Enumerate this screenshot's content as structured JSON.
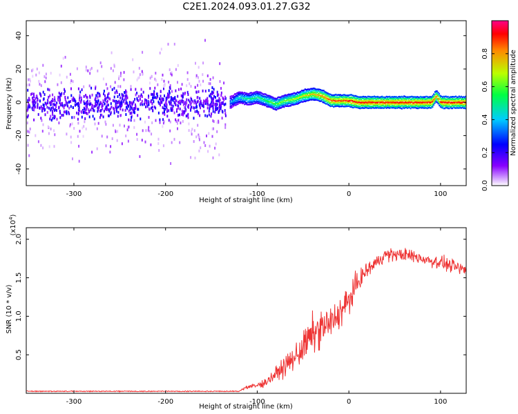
{
  "figure": {
    "title": "C2E1.2024.093.01.27.G32"
  },
  "colors": {
    "snr_line": "#ee3333",
    "frame": "#000000"
  },
  "chart_data": [
    {
      "type": "heatmap",
      "title": "C2E1.2024.093.01.27.G32",
      "xlabel": "Height of straight line (km)",
      "ylabel": "Frequency (Hz)",
      "xlim": [
        -352,
        128
      ],
      "ylim": [
        -50,
        49
      ],
      "x_ticks": [
        -300,
        -200,
        -100,
        0,
        100
      ],
      "y_ticks": [
        -40,
        -20,
        0,
        20,
        40
      ],
      "grid": false,
      "colorbar": {
        "label": "Normalized spectral amplitude",
        "range": [
          0,
          1
        ],
        "ticks": [
          "0.0",
          "0.2",
          "0.4",
          "0.6",
          "0.8"
        ],
        "tick_values": [
          0,
          0.2,
          0.4,
          0.6,
          0.8
        ]
      },
      "signal_track": {
        "x": [
          -130,
          -120,
          -110,
          -100,
          -90,
          -80,
          -70,
          -60,
          -50,
          -40,
          -30,
          -20,
          -10,
          0,
          10,
          20,
          30,
          40,
          50,
          60,
          70,
          80,
          90,
          95,
          100,
          110,
          120,
          128
        ],
        "frequency": [
          0,
          3,
          2,
          3,
          1,
          -1,
          1,
          2,
          4,
          5,
          4,
          1,
          1,
          1,
          0,
          0,
          0,
          0,
          0,
          0,
          0,
          0,
          0,
          4,
          0,
          0,
          0,
          0
        ],
        "amplitude": [
          0.35,
          0.45,
          0.5,
          0.5,
          0.55,
          0.6,
          0.6,
          0.65,
          0.7,
          0.75,
          0.8,
          0.85,
          0.85,
          0.9,
          0.9,
          0.9,
          0.9,
          0.9,
          0.9,
          0.9,
          0.9,
          0.9,
          0.9,
          0.8,
          0.9,
          0.9,
          0.9,
          0.9
        ]
      },
      "noise_region": {
        "x_from": -352,
        "x_to": -135,
        "amplitude": 0.1
      }
    },
    {
      "type": "line",
      "title": "",
      "xlabel": "Height of straight line (km)",
      "ylabel": "SNR (10 * v/v)",
      "y_multiplier": "(x10",
      "y_multiplier_exp": "4",
      "y_multiplier_close": ")",
      "xlim": [
        -352,
        128
      ],
      "ylim": [
        0,
        2.15
      ],
      "x_ticks": [
        -300,
        -200,
        -100,
        0,
        100
      ],
      "y_ticks": [
        0.5,
        1.0,
        1.5,
        2.0
      ],
      "y_tick_labels": [
        "0.5",
        "1.0",
        "1.5",
        "2.0"
      ],
      "grid": false,
      "series": [
        {
          "color": "#ee3333",
          "x": [
            -352,
            -300,
            -250,
            -200,
            -150,
            -120,
            -112,
            -100,
            -90,
            -80,
            -70,
            -60,
            -50,
            -40,
            -30,
            -20,
            -10,
            0,
            10,
            20,
            30,
            40,
            50,
            60,
            70,
            80,
            90,
            100,
            110,
            120,
            128
          ],
          "values": [
            0.02,
            0.02,
            0.02,
            0.02,
            0.02,
            0.02,
            0.08,
            0.1,
            0.15,
            0.25,
            0.35,
            0.45,
            0.6,
            0.75,
            0.85,
            0.9,
            1.05,
            1.2,
            1.45,
            1.6,
            1.7,
            1.8,
            1.8,
            1.8,
            1.78,
            1.75,
            1.72,
            1.7,
            1.66,
            1.62,
            1.6
          ],
          "noise": [
            0,
            0,
            0,
            0,
            0,
            0,
            0.04,
            0.06,
            0.08,
            0.12,
            0.18,
            0.22,
            0.3,
            0.35,
            0.35,
            0.3,
            0.3,
            0.25,
            0.2,
            0.15,
            0.12,
            0.12,
            0.12,
            0.12,
            0.12,
            0.12,
            0.12,
            0.12,
            0.12,
            0.12,
            0.12
          ]
        }
      ]
    }
  ]
}
